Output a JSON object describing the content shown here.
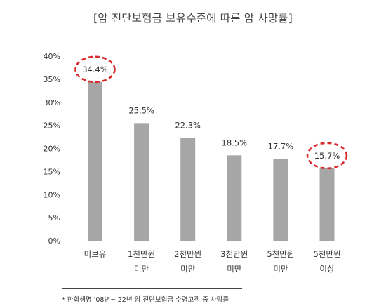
{
  "chart_data": {
    "type": "bar",
    "title": "[암 진단보험금 보유수준에 따른 암 사망률]",
    "categories": [
      [
        "미보유"
      ],
      [
        "1천만원",
        "미만"
      ],
      [
        "2천만원",
        "미만"
      ],
      [
        "3천만원",
        "미만"
      ],
      [
        "5천만원",
        "미만"
      ],
      [
        "5천만원",
        "이상"
      ]
    ],
    "values": [
      34.4,
      25.5,
      22.3,
      18.5,
      17.7,
      15.7
    ],
    "data_labels": [
      "34.4%",
      "25.5%",
      "22.3%",
      "18.5%",
      "17.7%",
      "15.7%"
    ],
    "highlighted": [
      0,
      5
    ],
    "ylim": [
      0,
      40
    ],
    "yticks": [
      0,
      5,
      10,
      15,
      20,
      25,
      30,
      35,
      40
    ],
    "ytick_labels": [
      "0%",
      "5%",
      "10%",
      "15%",
      "20%",
      "25%",
      "30%",
      "35%",
      "40%"
    ],
    "xlabel": "",
    "ylabel": "",
    "grid": false,
    "colors": {
      "bar": "#a6a6a6",
      "highlight": "#d92b2b",
      "axis": "#bfbfbf",
      "text": "#333333"
    },
    "footnote": "* 한화생명 '08년~'22년 암 진단보험금 수령고객 중 사망률"
  }
}
